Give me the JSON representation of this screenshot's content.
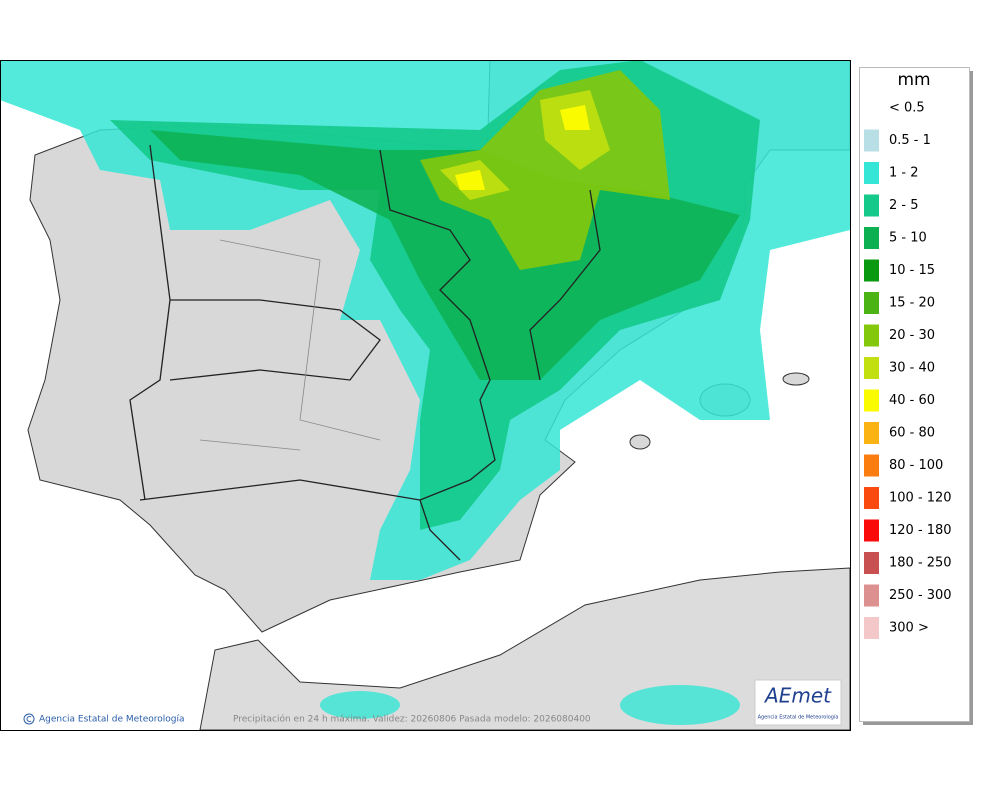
{
  "legend": {
    "unit": "mm",
    "items": [
      {
        "label": "< 0.5",
        "color": "#ffffff"
      },
      {
        "label": "0.5 - 1",
        "color": "#b9dfe6"
      },
      {
        "label": "1 - 2",
        "color": "#35e6d6"
      },
      {
        "label": "2 - 5",
        "color": "#14c98a"
      },
      {
        "label": "5 - 10",
        "color": "#0db050"
      },
      {
        "label": "10 - 15",
        "color": "#0a9a12"
      },
      {
        "label": "15 - 20",
        "color": "#4cb314"
      },
      {
        "label": "20 - 30",
        "color": "#84c80c"
      },
      {
        "label": "30 - 40",
        "color": "#c2e010"
      },
      {
        "label": "40 - 60",
        "color": "#fbfb00"
      },
      {
        "label": "60 - 80",
        "color": "#fbb314"
      },
      {
        "label": "80 - 100",
        "color": "#fb7d10"
      },
      {
        "label": "100 - 120",
        "color": "#fb4a10"
      },
      {
        "label": "120 - 180",
        "color": "#fb0a0a"
      },
      {
        "label": "180 - 250",
        "color": "#c85050"
      },
      {
        "label": "250 - 300",
        "color": "#dc9090"
      },
      {
        "label": "300 >",
        "color": "#f4c8c8"
      }
    ]
  },
  "footer": {
    "credit": "Agencia Estatal de Meteorología",
    "caption": "Precipitación en 24 h máxima. Validez: 20260806 Pasada modelo: 2026080400"
  },
  "logo": {
    "name": "AEmet",
    "subtitle": "Agencia Estatal de Meteorología"
  }
}
